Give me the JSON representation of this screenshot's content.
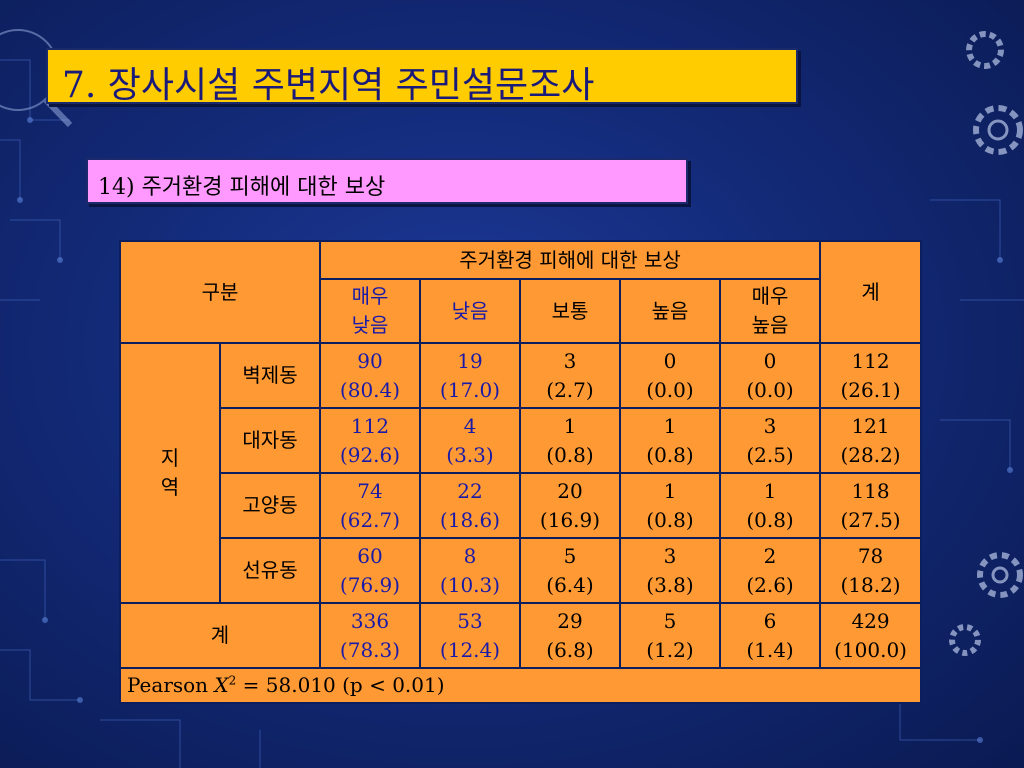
{
  "title": "7. 장사시설 주변지역 주민설문조사",
  "subtitle": "14) 주거환경 피해에 대한 보상",
  "table": {
    "corner_label": "구분",
    "group_header": "주거환경 피해에 대한 보상",
    "total_header": "계",
    "columns": [
      {
        "line1": "매우",
        "line2": "낮음"
      },
      {
        "line1": "낮음"
      },
      {
        "line1": "보통"
      },
      {
        "line1": "높음"
      },
      {
        "line1": "매우",
        "line2": "높음"
      }
    ],
    "region_label_line1": "지",
    "region_label_line2": "역",
    "rows": [
      {
        "name": "벽제동",
        "cells": [
          {
            "n": "90",
            "p": "(80.4)"
          },
          {
            "n": "19",
            "p": "(17.0)"
          },
          {
            "n": "3",
            "p": "(2.7)"
          },
          {
            "n": "0",
            "p": "(0.0)"
          },
          {
            "n": "0",
            "p": "(0.0)"
          },
          {
            "n": "112",
            "p": "(26.1)"
          }
        ]
      },
      {
        "name": "대자동",
        "cells": [
          {
            "n": "112",
            "p": "(92.6)"
          },
          {
            "n": "4",
            "p": "(3.3)"
          },
          {
            "n": "1",
            "p": "(0.8)"
          },
          {
            "n": "1",
            "p": "(0.8)"
          },
          {
            "n": "3",
            "p": "(2.5)"
          },
          {
            "n": "121",
            "p": "(28.2)"
          }
        ]
      },
      {
        "name": "고양동",
        "cells": [
          {
            "n": "74",
            "p": "(62.7)"
          },
          {
            "n": "22",
            "p": "(18.6)"
          },
          {
            "n": "20",
            "p": "(16.9)"
          },
          {
            "n": "1",
            "p": "(0.8)"
          },
          {
            "n": "1",
            "p": "(0.8)"
          },
          {
            "n": "118",
            "p": "(27.5)"
          }
        ]
      },
      {
        "name": "선유동",
        "cells": [
          {
            "n": "60",
            "p": "(76.9)"
          },
          {
            "n": "8",
            "p": "(10.3)"
          },
          {
            "n": "5",
            "p": "(6.4)"
          },
          {
            "n": "3",
            "p": "(3.8)"
          },
          {
            "n": "2",
            "p": "(2.6)"
          },
          {
            "n": "78",
            "p": "(18.2)"
          }
        ]
      }
    ],
    "total_row": {
      "name": "계",
      "cells": [
        {
          "n": "336",
          "p": "(78.3)"
        },
        {
          "n": "53",
          "p": "(12.4)"
        },
        {
          "n": "29",
          "p": "(6.8)"
        },
        {
          "n": "5",
          "p": "(1.2)"
        },
        {
          "n": "6",
          "p": "(1.4)"
        },
        {
          "n": "429",
          "p": "(100.0)"
        }
      ]
    },
    "stat": {
      "prefix": "Pearson ",
      "symbol": "X",
      "sup": "2",
      "rest": " = 58.010 (p < 0.01)"
    }
  },
  "colors": {
    "background": "#132a78",
    "title_bar": "#ffcc00",
    "subtitle_bar": "#ff99ff",
    "table_fill": "#ff9933",
    "blue_text": "#1a1aa8"
  }
}
